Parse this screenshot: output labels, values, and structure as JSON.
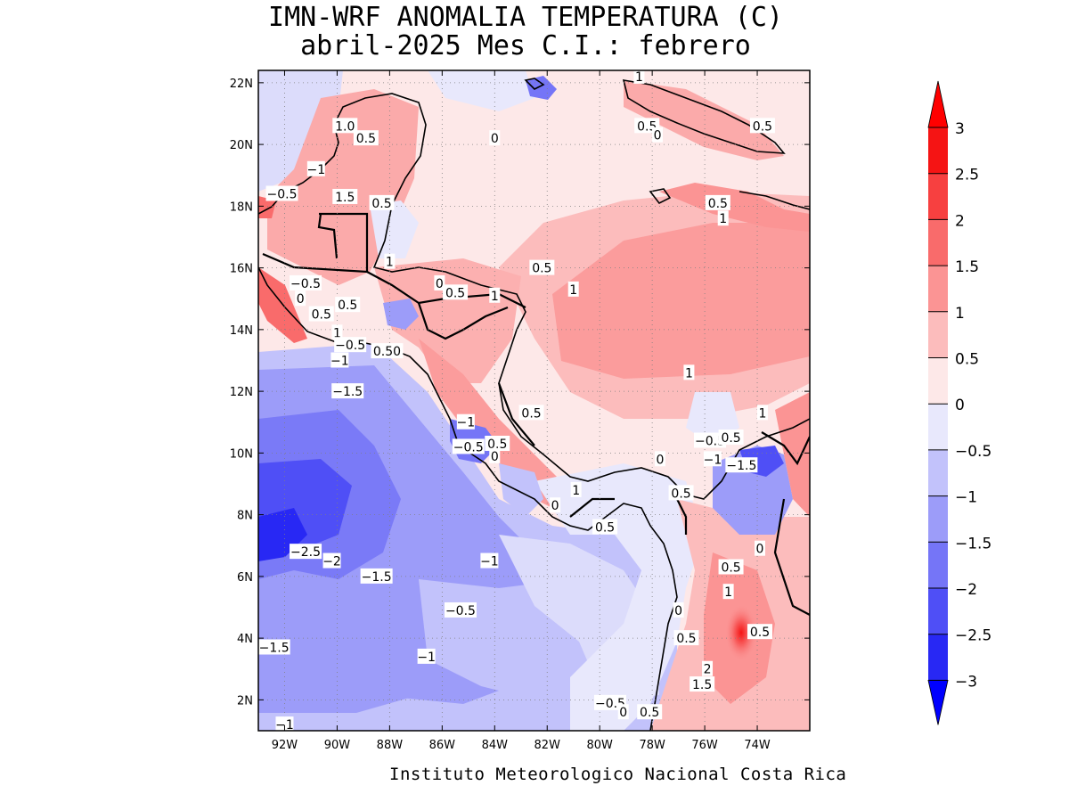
{
  "title": {
    "line1": "IMN-WRF  ANOMALIA TEMPERATURA (C)",
    "line2": "abril-2025 Mes C.I.: febrero"
  },
  "footer": "Instituto Meteorologico Nacional Costa Rica",
  "map": {
    "lon_range": [
      -93.0,
      -72.0
    ],
    "lat_range": [
      1.0,
      22.4
    ],
    "x_ticks": [
      {
        "value": -92,
        "label": "92W"
      },
      {
        "value": -90,
        "label": "90W"
      },
      {
        "value": -88,
        "label": "88W"
      },
      {
        "value": -86,
        "label": "86W"
      },
      {
        "value": -84,
        "label": "84W"
      },
      {
        "value": -82,
        "label": "82W"
      },
      {
        "value": -80,
        "label": "80W"
      },
      {
        "value": -78,
        "label": "78W"
      },
      {
        "value": -76,
        "label": "76W"
      },
      {
        "value": -74,
        "label": "74W"
      }
    ],
    "y_ticks": [
      {
        "value": 2,
        "label": "2N"
      },
      {
        "value": 4,
        "label": "4N"
      },
      {
        "value": 6,
        "label": "6N"
      },
      {
        "value": 8,
        "label": "8N"
      },
      {
        "value": 10,
        "label": "10N"
      },
      {
        "value": 12,
        "label": "12N"
      },
      {
        "value": 14,
        "label": "14N"
      },
      {
        "value": 16,
        "label": "16N"
      },
      {
        "value": 18,
        "label": "18N"
      },
      {
        "value": 20,
        "label": "20N"
      },
      {
        "value": 22,
        "label": "22N"
      }
    ],
    "contour_labels": [
      {
        "text": "0",
        "lon": -84.0,
        "lat": 20.2
      },
      {
        "text": "0.5",
        "lon": -82.2,
        "lat": 16.0
      },
      {
        "text": "1",
        "lon": -81.0,
        "lat": 15.3
      },
      {
        "text": "1",
        "lon": -76.6,
        "lat": 12.6
      },
      {
        "text": "0.5",
        "lon": -82.6,
        "lat": 11.3
      },
      {
        "text": "1",
        "lon": -73.8,
        "lat": 11.3
      },
      {
        "text": "1",
        "lon": -75.3,
        "lat": 17.6
      },
      {
        "text": "0.5",
        "lon": -75.5,
        "lat": 18.1
      },
      {
        "text": "0.5",
        "lon": -73.8,
        "lat": 20.6
      },
      {
        "text": "1",
        "lon": -78.5,
        "lat": 22.2
      },
      {
        "text": "0.5",
        "lon": -78.2,
        "lat": 20.6
      },
      {
        "text": "0",
        "lon": -77.8,
        "lat": 20.3
      },
      {
        "text": "1.0",
        "lon": -89.7,
        "lat": 20.6
      },
      {
        "text": "0.5",
        "lon": -88.9,
        "lat": 20.2
      },
      {
        "text": "−1",
        "lon": -90.8,
        "lat": 19.2
      },
      {
        "text": "0.5",
        "lon": -88.3,
        "lat": 18.1
      },
      {
        "text": "−0.5",
        "lon": -92.1,
        "lat": 18.4
      },
      {
        "text": "1.5",
        "lon": -89.7,
        "lat": 18.3
      },
      {
        "text": "1",
        "lon": -88.0,
        "lat": 16.2
      },
      {
        "text": "−0.5",
        "lon": -91.2,
        "lat": 15.5
      },
      {
        "text": "0",
        "lon": -91.4,
        "lat": 15.0
      },
      {
        "text": "0.5",
        "lon": -90.6,
        "lat": 14.5
      },
      {
        "text": "0.5",
        "lon": -89.6,
        "lat": 14.8
      },
      {
        "text": "0",
        "lon": -86.1,
        "lat": 15.5
      },
      {
        "text": "0.5",
        "lon": -85.5,
        "lat": 15.2
      },
      {
        "text": "1",
        "lon": -84.0,
        "lat": 15.1
      },
      {
        "text": "1",
        "lon": -90.0,
        "lat": 13.9
      },
      {
        "text": "−0.5",
        "lon": -89.5,
        "lat": 13.5
      },
      {
        "text": "0.50",
        "lon": -88.1,
        "lat": 13.3
      },
      {
        "text": "−1",
        "lon": -89.9,
        "lat": 13.0
      },
      {
        "text": "−1.5",
        "lon": -89.6,
        "lat": 12.0
      },
      {
        "text": "−1",
        "lon": -85.1,
        "lat": 11.0
      },
      {
        "text": "−0.5",
        "lon": -85.0,
        "lat": 10.2
      },
      {
        "text": "0.5",
        "lon": -83.9,
        "lat": 10.3
      },
      {
        "text": "0",
        "lon": -84.0,
        "lat": 9.9
      },
      {
        "text": "1",
        "lon": -80.9,
        "lat": 8.8
      },
      {
        "text": "0",
        "lon": -81.7,
        "lat": 8.3
      },
      {
        "text": "0.5",
        "lon": -79.8,
        "lat": 7.6
      },
      {
        "text": "0",
        "lon": -77.7,
        "lat": 9.8
      },
      {
        "text": "−0.5",
        "lon": -75.8,
        "lat": 10.4
      },
      {
        "text": "0.5",
        "lon": -75.0,
        "lat": 10.5
      },
      {
        "text": "−1",
        "lon": -75.7,
        "lat": 9.8
      },
      {
        "text": "−1.5",
        "lon": -74.6,
        "lat": 9.6
      },
      {
        "text": "0.5",
        "lon": -76.9,
        "lat": 8.7
      },
      {
        "text": "0",
        "lon": -73.9,
        "lat": 6.9
      },
      {
        "text": "0.5",
        "lon": -75.0,
        "lat": 6.3
      },
      {
        "text": "1",
        "lon": -75.1,
        "lat": 5.5
      },
      {
        "text": "0",
        "lon": -77.0,
        "lat": 4.9
      },
      {
        "text": "0.5",
        "lon": -76.7,
        "lat": 4.0
      },
      {
        "text": "0.5",
        "lon": -73.9,
        "lat": 4.2
      },
      {
        "text": "2",
        "lon": -75.9,
        "lat": 3.0
      },
      {
        "text": "1.5",
        "lon": -76.1,
        "lat": 2.5
      },
      {
        "text": "−0.5",
        "lon": -79.6,
        "lat": 1.9
      },
      {
        "text": "0",
        "lon": -79.1,
        "lat": 1.6
      },
      {
        "text": "0.5",
        "lon": -78.1,
        "lat": 1.6
      },
      {
        "text": "−2.5",
        "lon": -91.2,
        "lat": 6.8
      },
      {
        "text": "−2",
        "lon": -90.2,
        "lat": 6.5
      },
      {
        "text": "−1.5",
        "lon": -88.5,
        "lat": 6.0
      },
      {
        "text": "−1",
        "lon": -84.2,
        "lat": 6.5
      },
      {
        "text": "−0.5",
        "lon": -85.3,
        "lat": 4.9
      },
      {
        "text": "−1.5",
        "lon": -92.4,
        "lat": 3.7
      },
      {
        "text": "−1",
        "lon": -86.6,
        "lat": 3.4
      },
      {
        "text": "−1",
        "lon": -92.0,
        "lat": 1.2
      }
    ]
  },
  "colorbar": {
    "labels": [
      "3",
      "2.5",
      "2",
      "1.5",
      "1",
      "0.5",
      "0",
      "−0.5",
      "−1",
      "−1.5",
      "−2",
      "−2.5",
      "−3"
    ],
    "colors": [
      "#f51414",
      "#f74040",
      "#f96b6b",
      "#fb9494",
      "#fcbcbc",
      "#fde8e8",
      "#e8e8fc",
      "#c2c2fb",
      "#9c9cf9",
      "#7575f7",
      "#4f4ff6",
      "#2828f4"
    ],
    "over_color": "#ff0000",
    "under_color": "#0000ff"
  }
}
